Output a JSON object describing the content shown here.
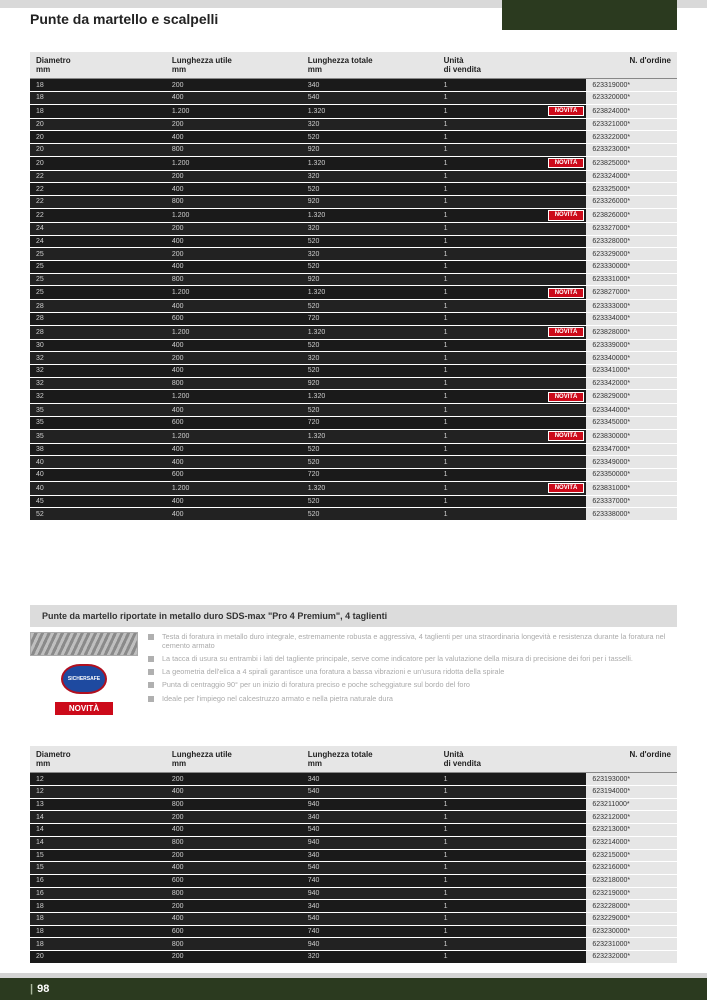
{
  "page_title": "Punte da martello e scalpelli",
  "page_number": "98",
  "columns": {
    "c1_line1": "Diametro",
    "c1_line2": "mm",
    "c2_line1": "Lunghezza utile",
    "c2_line2": "mm",
    "c3_line1": "Lunghezza totale",
    "c3_line2": "mm",
    "c4_line1": "Unità",
    "c4_line2": "di vendita",
    "c5_line1": "N. d'ordine"
  },
  "novita_label": "NOVITÀ",
  "section_band_title": "Punte da martello riportate in metallo duro SDS-max \"Pro 4 Premium\", 4 taglienti",
  "sichersafe_label": "SICHERSAFE",
  "bullets": [
    "Testa di foratura in metallo duro integrale, estremamente robusta e aggressiva, 4 taglienti per una straordinaria longevità e resistenza durante la foratura nel cemento armato",
    "La tacca di usura su entrambi i lati del tagliente principale, serve come indicatore per la valutazione della misura di precisione dei fori per i tasselli.",
    "La geometria dell'elica a 4 spirali garantisce una foratura a bassa vibrazioni e un'usura ridotta della spirale",
    "Punta di centraggio 90° per un inizio di foratura preciso e poche scheggiature sul bordo del foro",
    "Ideale per l'impiego nel calcestruzzo armato e nella pietra naturale dura"
  ],
  "table1": [
    {
      "d": "18",
      "lu": "200",
      "lt": "340",
      "u": "1",
      "ord": "623319000*"
    },
    {
      "d": "18",
      "lu": "400",
      "lt": "540",
      "u": "1",
      "ord": "623320000*"
    },
    {
      "d": "18",
      "lu": "1.200",
      "lt": "1.320",
      "u": "1",
      "ord": "623824000*",
      "novita": true
    },
    {
      "d": "20",
      "lu": "200",
      "lt": "320",
      "u": "1",
      "ord": "623321000*"
    },
    {
      "d": "20",
      "lu": "400",
      "lt": "520",
      "u": "1",
      "ord": "623322000*"
    },
    {
      "d": "20",
      "lu": "800",
      "lt": "920",
      "u": "1",
      "ord": "623323000*"
    },
    {
      "d": "20",
      "lu": "1.200",
      "lt": "1.320",
      "u": "1",
      "ord": "623825000*",
      "novita": true
    },
    {
      "d": "22",
      "lu": "200",
      "lt": "320",
      "u": "1",
      "ord": "623324000*"
    },
    {
      "d": "22",
      "lu": "400",
      "lt": "520",
      "u": "1",
      "ord": "623325000*"
    },
    {
      "d": "22",
      "lu": "800",
      "lt": "920",
      "u": "1",
      "ord": "623326000*"
    },
    {
      "d": "22",
      "lu": "1.200",
      "lt": "1.320",
      "u": "1",
      "ord": "623826000*",
      "novita": true
    },
    {
      "d": "24",
      "lu": "200",
      "lt": "320",
      "u": "1",
      "ord": "623327000*"
    },
    {
      "d": "24",
      "lu": "400",
      "lt": "520",
      "u": "1",
      "ord": "623328000*"
    },
    {
      "d": "25",
      "lu": "200",
      "lt": "320",
      "u": "1",
      "ord": "623329000*"
    },
    {
      "d": "25",
      "lu": "400",
      "lt": "520",
      "u": "1",
      "ord": "623330000*"
    },
    {
      "d": "25",
      "lu": "800",
      "lt": "920",
      "u": "1",
      "ord": "623331000*"
    },
    {
      "d": "25",
      "lu": "1.200",
      "lt": "1.320",
      "u": "1",
      "ord": "623827000*",
      "novita": true
    },
    {
      "d": "28",
      "lu": "400",
      "lt": "520",
      "u": "1",
      "ord": "623333000*"
    },
    {
      "d": "28",
      "lu": "600",
      "lt": "720",
      "u": "1",
      "ord": "623334000*"
    },
    {
      "d": "28",
      "lu": "1.200",
      "lt": "1.320",
      "u": "1",
      "ord": "623828000*",
      "novita": true
    },
    {
      "d": "30",
      "lu": "400",
      "lt": "520",
      "u": "1",
      "ord": "623339000*"
    },
    {
      "d": "32",
      "lu": "200",
      "lt": "320",
      "u": "1",
      "ord": "623340000*"
    },
    {
      "d": "32",
      "lu": "400",
      "lt": "520",
      "u": "1",
      "ord": "623341000*"
    },
    {
      "d": "32",
      "lu": "800",
      "lt": "920",
      "u": "1",
      "ord": "623342000*"
    },
    {
      "d": "32",
      "lu": "1.200",
      "lt": "1.320",
      "u": "1",
      "ord": "623829000*",
      "novita": true
    },
    {
      "d": "35",
      "lu": "400",
      "lt": "520",
      "u": "1",
      "ord": "623344000*"
    },
    {
      "d": "35",
      "lu": "600",
      "lt": "720",
      "u": "1",
      "ord": "623345000*"
    },
    {
      "d": "35",
      "lu": "1.200",
      "lt": "1.320",
      "u": "1",
      "ord": "623830000*",
      "novita": true
    },
    {
      "d": "38",
      "lu": "400",
      "lt": "520",
      "u": "1",
      "ord": "623347000*"
    },
    {
      "d": "40",
      "lu": "400",
      "lt": "520",
      "u": "1",
      "ord": "623349000*"
    },
    {
      "d": "40",
      "lu": "600",
      "lt": "720",
      "u": "1",
      "ord": "623350000*"
    },
    {
      "d": "40",
      "lu": "1.200",
      "lt": "1.320",
      "u": "1",
      "ord": "623831000*",
      "novita": true
    },
    {
      "d": "45",
      "lu": "400",
      "lt": "520",
      "u": "1",
      "ord": "623337000*"
    },
    {
      "d": "52",
      "lu": "400",
      "lt": "520",
      "u": "1",
      "ord": "623338000*"
    }
  ],
  "table2": [
    {
      "d": "12",
      "lu": "200",
      "lt": "340",
      "u": "1",
      "ord": "623193000*"
    },
    {
      "d": "12",
      "lu": "400",
      "lt": "540",
      "u": "1",
      "ord": "623194000*"
    },
    {
      "d": "13",
      "lu": "800",
      "lt": "940",
      "u": "1",
      "ord": "623211000*"
    },
    {
      "d": "14",
      "lu": "200",
      "lt": "340",
      "u": "1",
      "ord": "623212000*"
    },
    {
      "d": "14",
      "lu": "400",
      "lt": "540",
      "u": "1",
      "ord": "623213000*"
    },
    {
      "d": "14",
      "lu": "800",
      "lt": "940",
      "u": "1",
      "ord": "623214000*"
    },
    {
      "d": "15",
      "lu": "200",
      "lt": "340",
      "u": "1",
      "ord": "623215000*"
    },
    {
      "d": "15",
      "lu": "400",
      "lt": "540",
      "u": "1",
      "ord": "623216000*"
    },
    {
      "d": "16",
      "lu": "600",
      "lt": "740",
      "u": "1",
      "ord": "623218000*"
    },
    {
      "d": "16",
      "lu": "800",
      "lt": "940",
      "u": "1",
      "ord": "623219000*"
    },
    {
      "d": "18",
      "lu": "200",
      "lt": "340",
      "u": "1",
      "ord": "623228000*"
    },
    {
      "d": "18",
      "lu": "400",
      "lt": "540",
      "u": "1",
      "ord": "623229000*"
    },
    {
      "d": "18",
      "lu": "600",
      "lt": "740",
      "u": "1",
      "ord": "623230000*"
    },
    {
      "d": "18",
      "lu": "800",
      "lt": "940",
      "u": "1",
      "ord": "623231000*"
    },
    {
      "d": "20",
      "lu": "200",
      "lt": "320",
      "u": "1",
      "ord": "623232000*"
    }
  ],
  "col_widths": {
    "c1": "21%",
    "c2": "21%",
    "c3": "21%",
    "c4": "14%",
    "badge": "9%",
    "ord": "14%"
  }
}
